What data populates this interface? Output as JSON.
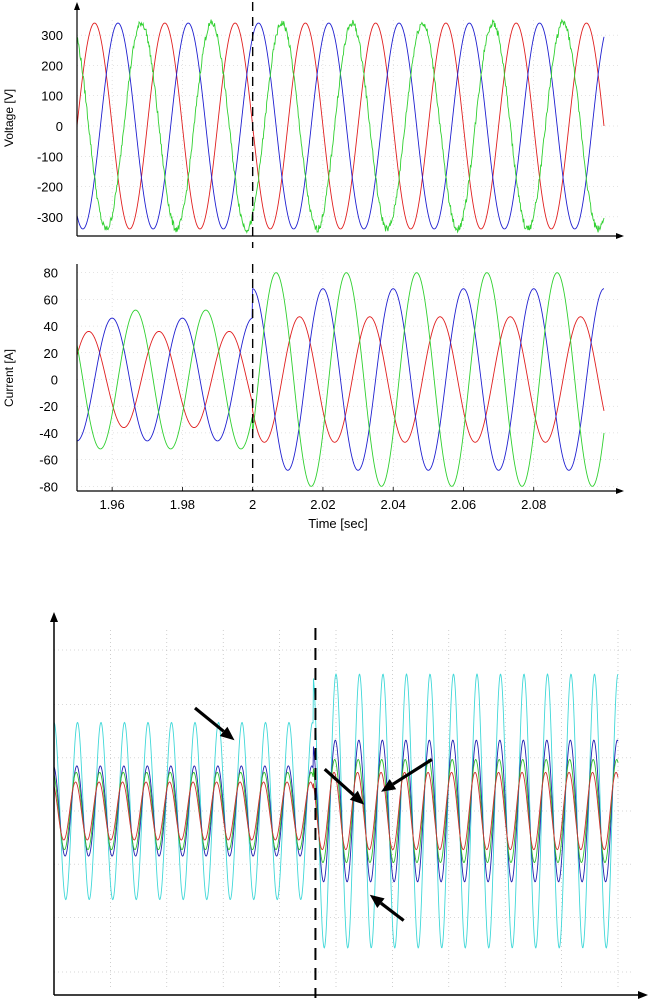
{
  "chart_data": [
    {
      "type": "line",
      "title": "",
      "xlabel": "",
      "ylabel": "Voltage [V]",
      "xlim": [
        1.95,
        2.1
      ],
      "ylim": [
        -350,
        350
      ],
      "yticks": [
        300,
        200,
        100,
        0,
        -100,
        -200,
        -300
      ],
      "yticklabels": [
        "300",
        "200",
        "100",
        "0",
        "-100",
        "-200",
        "-300"
      ],
      "event_time": 2.0,
      "frequency_hz": 50,
      "grid": true,
      "series": [
        {
          "color": "#e02020",
          "amplitude_before": 340,
          "amplitude_after": 340,
          "phase_deg": 0,
          "noise_before": 0,
          "noise_after": 0
        },
        {
          "color": "#2020d0",
          "amplitude_before": 340,
          "amplitude_after": 340,
          "phase_deg": -120,
          "noise_before": 0,
          "noise_after": 0
        },
        {
          "color": "#30d030",
          "amplitude_before": 340,
          "amplitude_after": 340,
          "phase_deg": 120,
          "noise_before": 12,
          "noise_after": 12
        }
      ]
    },
    {
      "type": "line",
      "title": "",
      "xlabel": "Time [sec]",
      "ylabel": "Current [A]",
      "xlim": [
        1.95,
        2.1
      ],
      "ylim": [
        -82,
        82
      ],
      "yticks": [
        80,
        60,
        40,
        20,
        0,
        -20,
        -40,
        -60,
        -80
      ],
      "yticklabels": [
        "80",
        "60",
        "40",
        "20",
        "0",
        "-20",
        "-40",
        "-60",
        "-80"
      ],
      "xticks": [
        1.96,
        1.98,
        2.0,
        2.02,
        2.04,
        2.06,
        2.08
      ],
      "xticklabels": [
        "1.96",
        "1.98",
        "2",
        "2.02",
        "2.04",
        "2.06",
        "2.08"
      ],
      "event_time": 2.0,
      "frequency_hz": 50,
      "grid": true,
      "series": [
        {
          "color": "#e02020",
          "amplitude_before": 36,
          "amplitude_after": 47,
          "phase_deg": 30
        },
        {
          "color": "#2020d0",
          "amplitude_before": 46,
          "amplitude_after": 68,
          "phase_deg": -90
        },
        {
          "color": "#30d030",
          "amplitude_before": 52,
          "amplitude_after": 80,
          "phase_deg": 150
        }
      ]
    },
    {
      "type": "line",
      "title": "",
      "xlabel": "",
      "ylabel": "",
      "xlim": [
        0,
        1
      ],
      "ylim": [
        -1,
        1
      ],
      "event_x": 0.46,
      "cycles": 24,
      "grid": true,
      "series": [
        {
          "color": "#40d8d8",
          "amplitude_before": 0.55,
          "amplitude_after": 0.85,
          "phase_deg": 0
        },
        {
          "color": "#2020b0",
          "amplitude_before": 0.28,
          "amplitude_after": 0.44,
          "phase_deg": 10
        },
        {
          "color": "#30c030",
          "amplitude_before": 0.24,
          "amplitude_after": 0.32,
          "phase_deg": 20
        },
        {
          "color": "#d03030",
          "amplitude_before": 0.18,
          "amplitude_after": 0.24,
          "phase_deg": 30
        }
      ],
      "annotations": [
        {
          "type": "arrow",
          "from": [
            0.25,
            0.82
          ],
          "to": [
            0.32,
            0.72
          ]
        },
        {
          "type": "arrow",
          "from": [
            0.48,
            0.63
          ],
          "to": [
            0.55,
            0.52
          ]
        },
        {
          "type": "arrow",
          "from": [
            0.67,
            0.66
          ],
          "to": [
            0.58,
            0.56
          ]
        },
        {
          "type": "arrow",
          "from": [
            0.62,
            0.16
          ],
          "to": [
            0.56,
            0.24
          ]
        }
      ]
    }
  ]
}
